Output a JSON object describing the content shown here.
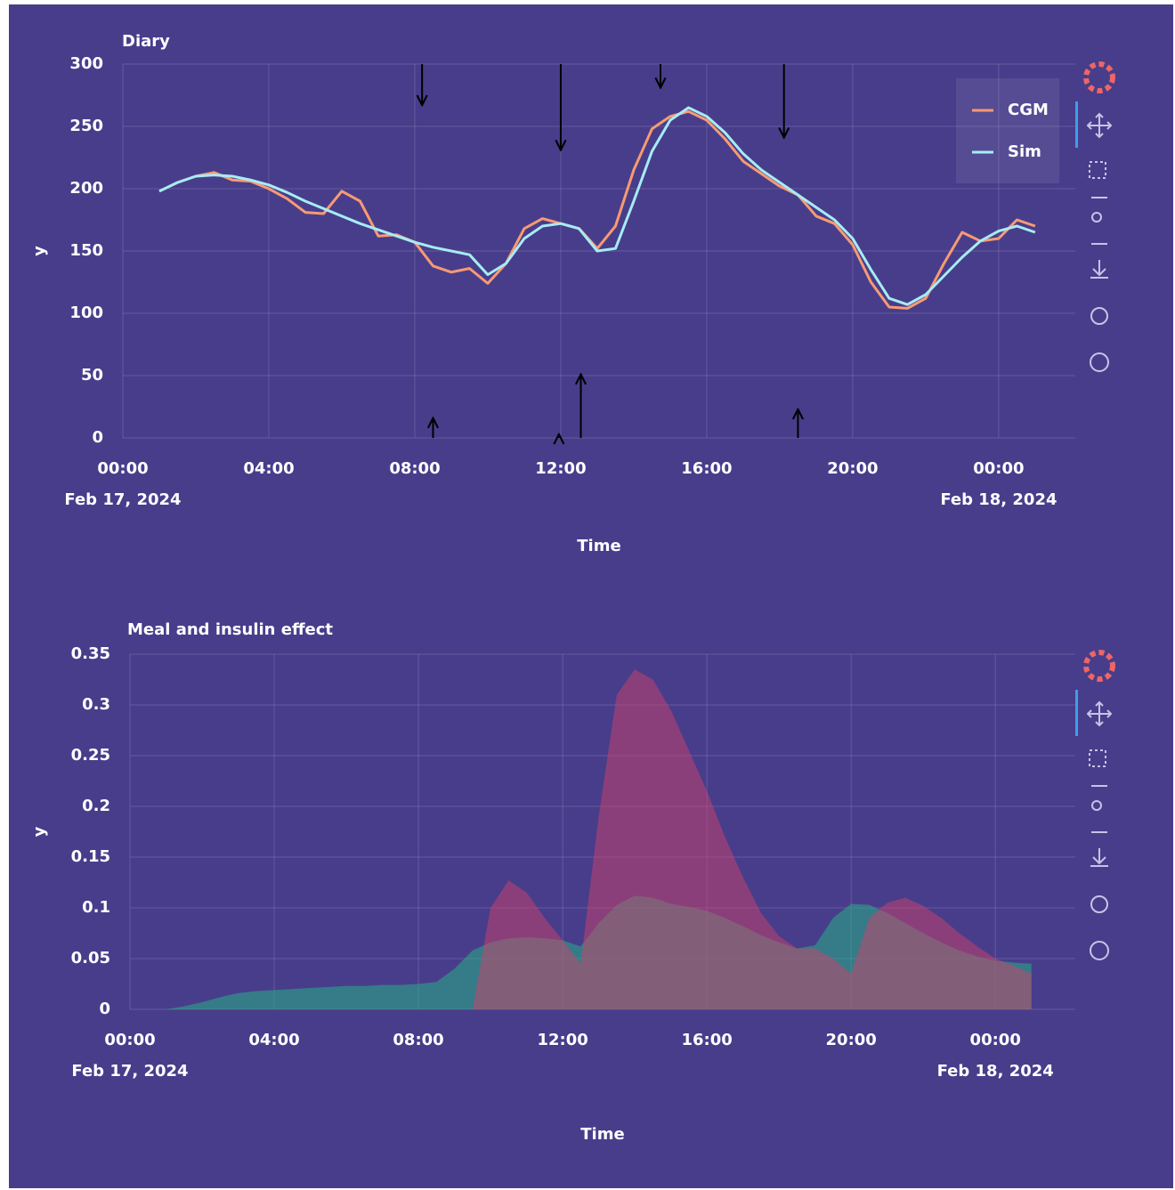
{
  "chart_data": [
    {
      "type": "line",
      "title": "Diary",
      "x_label": "Time",
      "y_label": "y",
      "x": [
        "2024-02-17T01:00",
        "2024-02-17T01:30",
        "2024-02-17T02:00",
        "2024-02-17T02:30",
        "2024-02-17T03:00",
        "2024-02-17T03:30",
        "2024-02-17T04:00",
        "2024-02-17T04:30",
        "2024-02-17T05:00",
        "2024-02-17T05:30",
        "2024-02-17T06:00",
        "2024-02-17T06:30",
        "2024-02-17T07:00",
        "2024-02-17T07:30",
        "2024-02-17T08:00",
        "2024-02-17T08:30",
        "2024-02-17T09:00",
        "2024-02-17T09:30",
        "2024-02-17T10:00",
        "2024-02-17T10:30",
        "2024-02-17T11:00",
        "2024-02-17T11:30",
        "2024-02-17T12:00",
        "2024-02-17T12:30",
        "2024-02-17T13:00",
        "2024-02-17T13:30",
        "2024-02-17T14:00",
        "2024-02-17T14:30",
        "2024-02-17T15:00",
        "2024-02-17T15:30",
        "2024-02-17T16:00",
        "2024-02-17T16:30",
        "2024-02-17T17:00",
        "2024-02-17T17:30",
        "2024-02-17T18:00",
        "2024-02-17T18:30",
        "2024-02-17T19:00",
        "2024-02-17T19:30",
        "2024-02-17T20:00",
        "2024-02-17T20:30",
        "2024-02-17T21:00",
        "2024-02-17T21:30",
        "2024-02-17T22:00",
        "2024-02-17T22:30",
        "2024-02-17T23:00",
        "2024-02-17T23:30",
        "2024-02-18T00:00",
        "2024-02-18T00:30",
        "2024-02-18T01:00"
      ],
      "series": [
        {
          "name": "CGM",
          "color": "#f79a72",
          "values": [
            198,
            205,
            210,
            213,
            207,
            206,
            200,
            192,
            181,
            180,
            198,
            190,
            162,
            163,
            157,
            138,
            133,
            136,
            124,
            140,
            168,
            176,
            172,
            168,
            152,
            170,
            215,
            248,
            258,
            262,
            255,
            240,
            222,
            212,
            202,
            195,
            178,
            172,
            155,
            125,
            105,
            104,
            112,
            140,
            165,
            158,
            160,
            175,
            170
          ]
        },
        {
          "name": "Sim",
          "color": "#a6ecf5",
          "values": [
            198,
            205,
            210,
            211,
            210,
            207,
            203,
            197,
            190,
            184,
            178,
            172,
            167,
            162,
            157,
            153,
            150,
            147,
            131,
            140,
            160,
            170,
            172,
            168,
            150,
            152,
            190,
            230,
            255,
            265,
            258,
            245,
            228,
            215,
            205,
            195,
            185,
            175,
            160,
            135,
            112,
            107,
            115,
            130,
            145,
            158,
            166,
            170,
            165
          ]
        }
      ],
      "down_arrows": {
        "x": [
          "2024-02-17T08:12",
          "2024-02-17T12:00",
          "2024-02-17T14:44",
          "2024-02-17T18:07"
        ],
        "y": [
          267,
          231,
          281,
          241
        ]
      },
      "up_arrows": {
        "x": [
          "2024-02-17T08:30",
          "2024-02-17T11:57",
          "2024-02-17T12:33",
          "2024-02-17T18:30"
        ],
        "y": [
          16,
          3,
          51,
          23
        ]
      },
      "xlim": [
        "2024-02-17T00:00",
        "2024-02-18T02:06"
      ],
      "xticks": [
        {
          "value": "2024-02-17T00:00",
          "label": "00:00",
          "date": "Feb 17, 2024"
        },
        {
          "value": "2024-02-17T04:00",
          "label": "04:00"
        },
        {
          "value": "2024-02-17T08:00",
          "label": "08:00"
        },
        {
          "value": "2024-02-17T12:00",
          "label": "12:00"
        },
        {
          "value": "2024-02-17T16:00",
          "label": "16:00"
        },
        {
          "value": "2024-02-17T20:00",
          "label": "20:00"
        },
        {
          "value": "2024-02-18T00:00",
          "label": "00:00",
          "date": "Feb 18, 2024"
        }
      ],
      "ylim": [
        0,
        300
      ],
      "yticks": [
        0,
        50,
        100,
        150,
        200,
        250,
        300
      ],
      "grid": true,
      "legend": "top right"
    },
    {
      "type": "area",
      "title": "Meal and insulin effect",
      "x_label": "Time",
      "y_label": "y",
      "x": [
        "2024-02-17T01:00",
        "2024-02-17T01:30",
        "2024-02-17T02:00",
        "2024-02-17T02:30",
        "2024-02-17T03:00",
        "2024-02-17T03:30",
        "2024-02-17T04:00",
        "2024-02-17T04:30",
        "2024-02-17T05:00",
        "2024-02-17T05:30",
        "2024-02-17T06:00",
        "2024-02-17T06:30",
        "2024-02-17T07:00",
        "2024-02-17T07:30",
        "2024-02-17T08:00",
        "2024-02-17T08:30",
        "2024-02-17T09:00",
        "2024-02-17T09:30",
        "2024-02-17T10:00",
        "2024-02-17T10:30",
        "2024-02-17T11:00",
        "2024-02-17T11:30",
        "2024-02-17T12:00",
        "2024-02-17T12:30",
        "2024-02-17T13:00",
        "2024-02-17T13:30",
        "2024-02-17T14:00",
        "2024-02-17T14:30",
        "2024-02-17T15:00",
        "2024-02-17T15:30",
        "2024-02-17T16:00",
        "2024-02-17T16:30",
        "2024-02-17T17:00",
        "2024-02-17T17:30",
        "2024-02-17T18:00",
        "2024-02-17T18:30",
        "2024-02-17T19:00",
        "2024-02-17T19:30",
        "2024-02-17T20:00",
        "2024-02-17T20:30",
        "2024-02-17T21:00",
        "2024-02-17T21:30",
        "2024-02-17T22:00",
        "2024-02-17T22:30",
        "2024-02-17T23:00",
        "2024-02-17T23:30",
        "2024-02-18T00:00",
        "2024-02-18T00:30",
        "2024-02-18T01:00"
      ],
      "series": [
        {
          "color": "rgba(40,175,135,0.55)",
          "values": [
            0,
            0.003,
            0.007,
            0.012,
            0.016,
            0.018,
            0.019,
            0.02,
            0.021,
            0.022,
            0.023,
            0.023,
            0.024,
            0.024,
            0.025,
            0.027,
            0.04,
            0.058,
            0.066,
            0.07,
            0.071,
            0.07,
            0.068,
            0.062,
            0.085,
            0.103,
            0.112,
            0.11,
            0.104,
            0.101,
            0.097,
            0.09,
            0.082,
            0.073,
            0.066,
            0.06,
            0.063,
            0.09,
            0.104,
            0.103,
            0.095,
            0.085,
            0.075,
            0.066,
            0.058,
            0.052,
            0.048,
            0.046,
            0.045
          ]
        },
        {
          "color": "rgba(205,65,105,0.5)",
          "values": [
            0,
            0,
            0,
            0,
            0,
            0,
            0,
            0,
            0,
            0,
            0,
            0,
            0,
            0,
            0,
            0,
            0,
            0,
            0.1,
            0.127,
            0.115,
            0.09,
            0.068,
            0.045,
            0.19,
            0.31,
            0.335,
            0.325,
            0.295,
            0.255,
            0.215,
            0.17,
            0.13,
            0.095,
            0.072,
            0.06,
            0.06,
            0.05,
            0.035,
            0.09,
            0.105,
            0.11,
            0.102,
            0.09,
            0.075,
            0.062,
            0.05,
            0.043,
            0.035
          ]
        }
      ],
      "xlim": [
        "2024-02-17T00:00",
        "2024-02-18T02:13"
      ],
      "xticks": [
        {
          "value": "2024-02-17T00:00",
          "label": "00:00",
          "date": "Feb 17, 2024"
        },
        {
          "value": "2024-02-17T04:00",
          "label": "04:00"
        },
        {
          "value": "2024-02-17T08:00",
          "label": "08:00"
        },
        {
          "value": "2024-02-17T12:00",
          "label": "12:00"
        },
        {
          "value": "2024-02-17T16:00",
          "label": "16:00"
        },
        {
          "value": "2024-02-17T20:00",
          "label": "20:00"
        },
        {
          "value": "2024-02-18T00:00",
          "label": "00:00",
          "date": "Feb 18, 2024"
        }
      ],
      "ylim": [
        0,
        0.35
      ],
      "yticks": [
        0,
        0.05,
        0.1,
        0.15,
        0.2,
        0.25,
        0.3,
        0.35
      ],
      "grid": true
    }
  ]
}
